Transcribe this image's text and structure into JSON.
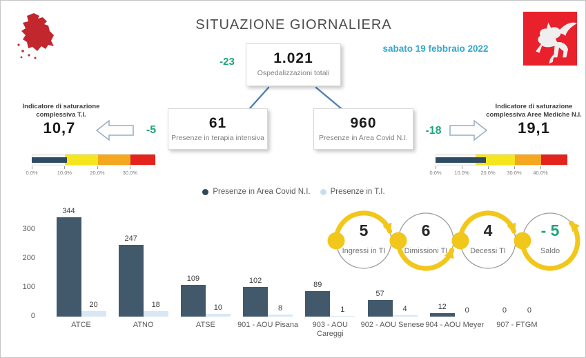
{
  "header": {
    "title": "SITUAZIONE GIORNALIERA",
    "date": "sabato 19 febbraio 2022"
  },
  "colors": {
    "green": "#1fa47c",
    "teal_date": "#35a7c8",
    "map_red": "#c1272d",
    "logo_red": "#e8212c",
    "connector_blue": "#4e7fb5",
    "gauge_bar_navy": "#2e4b61"
  },
  "tree": {
    "total": {
      "value": "1.021",
      "label": "Ospedalizzazioni totali",
      "delta": "-23"
    },
    "icu": {
      "value": "61",
      "label": "Presenze in terapia intensiva",
      "delta": "-5"
    },
    "covid_area": {
      "value": "960",
      "label": "Presenze in Area Covid N.I.",
      "delta": "-18"
    }
  },
  "chart_data": [
    {
      "id": "presenze-per-azienda",
      "type": "bar",
      "categories": [
        "ATCE",
        "ATNO",
        "ATSE",
        "901 - AOU Pisana",
        "903 - AOU Careggi",
        "902 - AOU Senese",
        "904 - AOU Meyer",
        "907 - FTGM"
      ],
      "series": [
        {
          "name": "Presenze in Area Covid N.I.",
          "color": "#42596b",
          "dot_color": "#33475a",
          "values": [
            344,
            247,
            109,
            102,
            89,
            57,
            12,
            0
          ]
        },
        {
          "name": "Presenze in T.I.",
          "color": "#d9e7f4",
          "dot_color": "#c9ddee",
          "values": [
            20,
            18,
            10,
            8,
            1,
            4,
            0,
            0
          ]
        }
      ],
      "yticks": [
        0,
        100,
        200,
        300
      ],
      "ylim": [
        0,
        380
      ],
      "grid": false,
      "legend_position": "top-center"
    },
    {
      "id": "saturazione-ti",
      "type": "bullet-gauge",
      "title": "Indicatore di saturazione complessiva T.I.",
      "value": 10.7,
      "value_display": "10,7",
      "max": 37.5,
      "bar_color": "#2e4b61",
      "segments": [
        {
          "from": 0,
          "to": 10,
          "color": "#f7f7f7"
        },
        {
          "from": 10,
          "to": 20,
          "color": "#f4e51f"
        },
        {
          "from": 20,
          "to": 30,
          "color": "#f4a71f"
        },
        {
          "from": 30,
          "to": 37.5,
          "color": "#e5231d"
        }
      ],
      "ticks": [
        {
          "pos": 0,
          "label": "0.0%"
        },
        {
          "pos": 10,
          "label": "10.0%"
        },
        {
          "pos": 20,
          "label": "20.0%"
        },
        {
          "pos": 30,
          "label": "30.0%"
        }
      ]
    },
    {
      "id": "saturazione-aree-mediche",
      "type": "bullet-gauge",
      "title": "Indicatore di saturazione complessiva Aree Mediche N.I.",
      "value": 19.1,
      "value_display": "19,1",
      "max": 50,
      "bar_color": "#2e4b61",
      "segments": [
        {
          "from": 0,
          "to": 15,
          "color": "#f7f7f7"
        },
        {
          "from": 15,
          "to": 30,
          "color": "#f4e51f"
        },
        {
          "from": 30,
          "to": 40,
          "color": "#f4a71f"
        },
        {
          "from": 40,
          "to": 50,
          "color": "#e5231d"
        }
      ],
      "ticks": [
        {
          "pos": 0,
          "label": "0.0%"
        },
        {
          "pos": 10,
          "label": "10.0%"
        },
        {
          "pos": 20,
          "label": "20.0%"
        },
        {
          "pos": 30,
          "label": "30.0%"
        },
        {
          "pos": 40,
          "label": "40.0%"
        }
      ]
    },
    {
      "id": "flusso-terapia-intensiva",
      "type": "flow",
      "accent_color": "#f2c71b",
      "circle_color": "#9b9b9b",
      "steps": [
        {
          "value": "5",
          "label": "Ingressi in TI",
          "highlight": false
        },
        {
          "value": "6",
          "label": "Dimissioni TI",
          "highlight": false
        },
        {
          "value": "4",
          "label": "Decessi TI",
          "highlight": false
        },
        {
          "value": "- 5",
          "label": "Saldo",
          "highlight": true
        }
      ]
    }
  ]
}
